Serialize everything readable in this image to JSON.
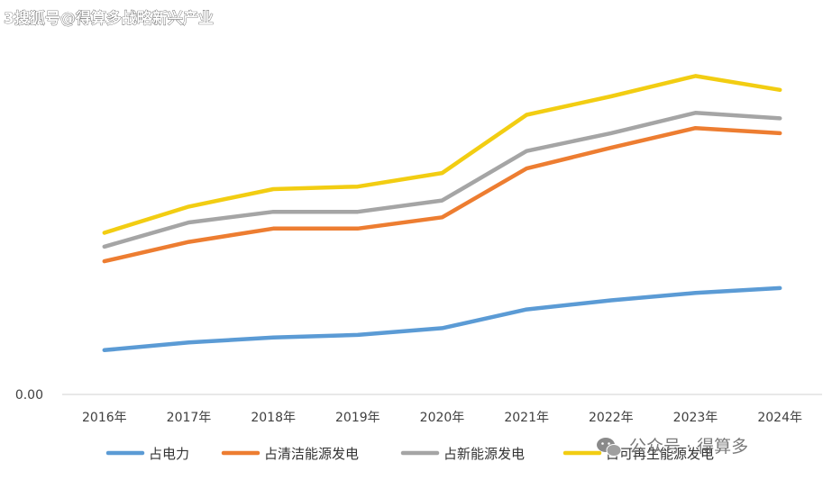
{
  "watermark_top": "3搜狐号@得算多战略新兴产业",
  "watermark_bottom": "公众号 · 得算多",
  "chart_data": {
    "type": "line",
    "categories": [
      "2016年",
      "2017年",
      "2018年",
      "2019年",
      "2020年",
      "2021年",
      "2022年",
      "2023年",
      "2024年"
    ],
    "y_tick_labels": [
      "0.00"
    ],
    "ylim": [
      0,
      100
    ],
    "grid": false,
    "legend_position": "bottom",
    "series": [
      {
        "name": "占电力",
        "color": "#5B9BD5",
        "values": [
          13.7,
          16.1,
          17.6,
          18.4,
          20.5,
          26.3,
          29.1,
          31.4,
          32.9
        ]
      },
      {
        "name": "占清洁能源发电",
        "color": "#ED7D31",
        "values": [
          41.2,
          47.2,
          51.3,
          51.3,
          54.8,
          69.9,
          76.3,
          82.4,
          80.8
        ]
      },
      {
        "name": "占新能源发电",
        "color": "#A5A5A5",
        "values": [
          45.7,
          53.2,
          56.5,
          56.5,
          60.0,
          75.3,
          80.8,
          87.1,
          85.4
        ]
      },
      {
        "name": "占可再生能源发电",
        "color": "#F2CD12",
        "values": [
          50.0,
          58.1,
          63.5,
          64.3,
          68.5,
          86.5,
          92.2,
          98.5,
          94.2
        ]
      }
    ]
  }
}
